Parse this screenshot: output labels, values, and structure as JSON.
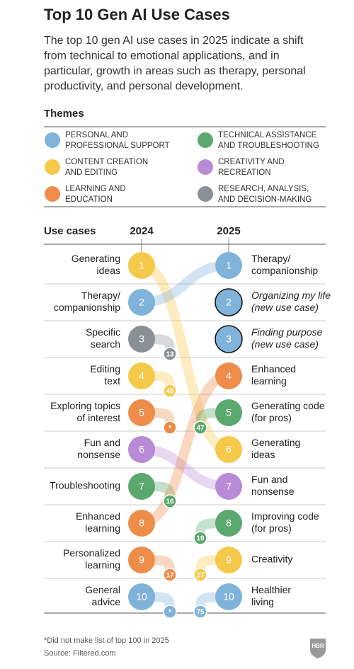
{
  "chart_data": {
    "type": "bump",
    "title": "Top 10 Gen AI Use Cases",
    "subtitle": [
      "The top 10 gen AI use cases in 2025 indicate a shift",
      "from technical to emotional applications, and in",
      "particular, growth in areas such as therapy, personal",
      "productivity, and personal development."
    ],
    "legend_title": "Themes",
    "themes": [
      {
        "name": [
          "PERSONAL AND",
          "PROFESSIONAL SUPPORT"
        ],
        "color": "#7fb3d9"
      },
      {
        "name": [
          "TECHNICAL ASSISTANCE",
          "AND TROUBLESHOOTING"
        ],
        "color": "#5aa86e"
      },
      {
        "name": [
          "CONTENT CREATION",
          "AND EDITING"
        ],
        "color": "#f5c94a"
      },
      {
        "name": [
          "CREATIVITY AND",
          "RECREATION"
        ],
        "color": "#b98bd6"
      },
      {
        "name": [
          "LEARNING AND",
          "EDUCATION"
        ],
        "color": "#ee8c4a"
      },
      {
        "name": [
          "RESEARCH, ANALYSIS,",
          "AND DECISION-MAKING"
        ],
        "color": "#8b9096"
      }
    ],
    "column_title": "Use cases",
    "years": [
      "2024",
      "2025"
    ],
    "left": [
      {
        "label": [
          "Generating",
          "ideas"
        ],
        "rank": 1,
        "color": "#f5c94a",
        "to": 6
      },
      {
        "label": [
          "Therapy/",
          "companionship"
        ],
        "rank": 2,
        "color": "#7fb3d9",
        "to": 1
      },
      {
        "label": [
          "Specific",
          "search"
        ],
        "rank": 3,
        "color": "#8b9096",
        "to": 13
      },
      {
        "label": [
          "Editing",
          "text"
        ],
        "rank": 4,
        "color": "#f5c94a",
        "to": 45
      },
      {
        "label": [
          "Exploring topics",
          "of interest"
        ],
        "rank": 5,
        "color": "#ee8c4a",
        "to": "*"
      },
      {
        "label": [
          "Fun and",
          "nonsense"
        ],
        "rank": 6,
        "color": "#b98bd6",
        "to": 7
      },
      {
        "label": [
          "Troubleshooting"
        ],
        "rank": 7,
        "color": "#5aa86e",
        "to": 16
      },
      {
        "label": [
          "Enhanced",
          "learning"
        ],
        "rank": 8,
        "color": "#ee8c4a",
        "to": 4
      },
      {
        "label": [
          "Personalized",
          "learning"
        ],
        "rank": 9,
        "color": "#ee8c4a",
        "to": 17
      },
      {
        "label": [
          "General",
          "advice"
        ],
        "rank": 10,
        "color": "#7fb3d9",
        "to": "*"
      }
    ],
    "right": [
      {
        "label": [
          "Therapy/",
          "companionship"
        ],
        "rank": 1,
        "color": "#7fb3d9",
        "from": 2
      },
      {
        "label": [
          "Organizing my life",
          "(new use case)"
        ],
        "rank": 2,
        "color": "#7fb3d9",
        "from": null,
        "new": true
      },
      {
        "label": [
          "Finding purpose",
          "(new use case)"
        ],
        "rank": 3,
        "color": "#7fb3d9",
        "from": null,
        "new": true
      },
      {
        "label": [
          "Enhanced",
          "learning"
        ],
        "rank": 4,
        "color": "#ee8c4a",
        "from": 8
      },
      {
        "label": [
          "Generating code",
          "(for pros)"
        ],
        "rank": 5,
        "color": "#5aa86e",
        "from": 47
      },
      {
        "label": [
          "Generating",
          "ideas"
        ],
        "rank": 6,
        "color": "#f5c94a",
        "from": 1
      },
      {
        "label": [
          "Fun and",
          "nonsense"
        ],
        "rank": 7,
        "color": "#b98bd6",
        "from": 6
      },
      {
        "label": [
          "Improving code",
          "(for pros)"
        ],
        "rank": 8,
        "color": "#5aa86e",
        "from": 19
      },
      {
        "label": [
          "Creativity"
        ],
        "rank": 9,
        "color": "#f5c94a",
        "from": 27
      },
      {
        "label": [
          "Healthier",
          "living"
        ],
        "rank": 10,
        "color": "#7fb3d9",
        "from": 75
      }
    ],
    "footnote": "*Did not make list of top 100 in 2025",
    "source": "Source: Filtered.com",
    "logo": "HBR"
  }
}
